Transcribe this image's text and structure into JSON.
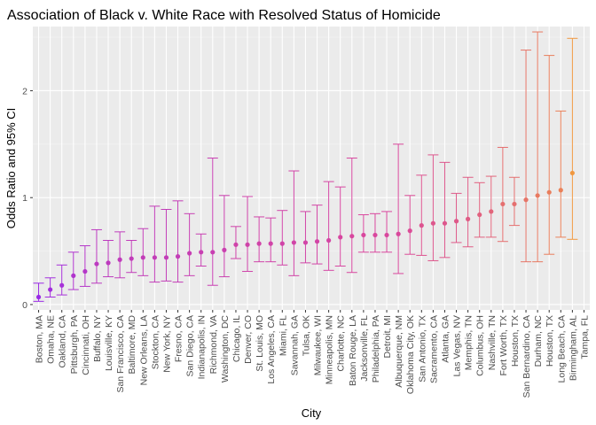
{
  "chart_data": {
    "type": "errorbar",
    "title": "Association of Black v. White Race with Resolved Status of Homicide",
    "xlabel": "City",
    "ylabel": "Odds Ratio and 95% CI",
    "ylim": [
      -0.05,
      2.6
    ],
    "yticks": [
      0,
      1,
      2
    ],
    "grid": true,
    "legend": "none",
    "color_low": "#9a2ae6",
    "color_mid": "#d9479e",
    "color_high": "#f0973f",
    "points": [
      {
        "city": "Boston, MA",
        "or": 0.07,
        "lo": 0.03,
        "hi": 0.2
      },
      {
        "city": "Omaha, NE",
        "or": 0.14,
        "lo": 0.07,
        "hi": 0.25
      },
      {
        "city": "Oakland, CA",
        "or": 0.18,
        "lo": 0.09,
        "hi": 0.37
      },
      {
        "city": "Pittsburgh, PA",
        "or": 0.27,
        "lo": 0.14,
        "hi": 0.49
      },
      {
        "city": "Cincinnati, OH",
        "or": 0.31,
        "lo": 0.17,
        "hi": 0.55
      },
      {
        "city": "Buffalo, NY",
        "or": 0.38,
        "lo": 0.2,
        "hi": 0.7
      },
      {
        "city": "Louisville, KY",
        "or": 0.39,
        "lo": 0.26,
        "hi": 0.6
      },
      {
        "city": "San Francisco, CA",
        "or": 0.42,
        "lo": 0.25,
        "hi": 0.68
      },
      {
        "city": "Baltimore, MD",
        "or": 0.43,
        "lo": 0.3,
        "hi": 0.6
      },
      {
        "city": "New Orleans, LA",
        "or": 0.44,
        "lo": 0.27,
        "hi": 0.71
      },
      {
        "city": "Stockton, CA",
        "or": 0.44,
        "lo": 0.21,
        "hi": 0.92
      },
      {
        "city": "New York, NY",
        "or": 0.44,
        "lo": 0.22,
        "hi": 0.89
      },
      {
        "city": "Fresno, CA",
        "or": 0.45,
        "lo": 0.21,
        "hi": 0.97
      },
      {
        "city": "San Diego, CA",
        "or": 0.48,
        "lo": 0.27,
        "hi": 0.85
      },
      {
        "city": "Indianapolis, IN",
        "or": 0.49,
        "lo": 0.36,
        "hi": 0.66
      },
      {
        "city": "Richmond, VA",
        "or": 0.49,
        "lo": 0.18,
        "hi": 1.37
      },
      {
        "city": "Washington, DC",
        "or": 0.51,
        "lo": 0.26,
        "hi": 1.02
      },
      {
        "city": "Chicago, IL",
        "or": 0.56,
        "lo": 0.43,
        "hi": 0.73
      },
      {
        "city": "Denver, CO",
        "or": 0.56,
        "lo": 0.31,
        "hi": 1.01
      },
      {
        "city": "St. Louis, MO",
        "or": 0.57,
        "lo": 0.4,
        "hi": 0.82
      },
      {
        "city": "Los Angeles, CA",
        "or": 0.57,
        "lo": 0.4,
        "hi": 0.81
      },
      {
        "city": "Miami, FL",
        "or": 0.57,
        "lo": 0.37,
        "hi": 0.88
      },
      {
        "city": "Savannah, GA",
        "or": 0.58,
        "lo": 0.27,
        "hi": 1.25
      },
      {
        "city": "Tulsa, OK",
        "or": 0.58,
        "lo": 0.39,
        "hi": 0.87
      },
      {
        "city": "Milwaukee, WI",
        "or": 0.59,
        "lo": 0.38,
        "hi": 0.93
      },
      {
        "city": "Minneapolis, MN",
        "or": 0.6,
        "lo": 0.32,
        "hi": 1.15
      },
      {
        "city": "Charlotte, NC",
        "or": 0.63,
        "lo": 0.36,
        "hi": 1.1
      },
      {
        "city": "Baton Rouge, LA",
        "or": 0.64,
        "lo": 0.3,
        "hi": 1.37
      },
      {
        "city": "Jacksonville, FL",
        "or": 0.65,
        "lo": 0.49,
        "hi": 0.84
      },
      {
        "city": "Philadelphia, PA",
        "or": 0.65,
        "lo": 0.49,
        "hi": 0.85
      },
      {
        "city": "Detroit, MI",
        "or": 0.65,
        "lo": 0.49,
        "hi": 0.87
      },
      {
        "city": "Albuquerque, NM",
        "or": 0.66,
        "lo": 0.29,
        "hi": 1.5
      },
      {
        "city": "Oklahoma City, OK",
        "or": 0.69,
        "lo": 0.47,
        "hi": 1.02
      },
      {
        "city": "San Antonio, TX",
        "or": 0.74,
        "lo": 0.46,
        "hi": 1.21
      },
      {
        "city": "Sacramento, CA",
        "or": 0.76,
        "lo": 0.41,
        "hi": 1.4
      },
      {
        "city": "Atlanta, GA",
        "or": 0.76,
        "lo": 0.44,
        "hi": 1.33
      },
      {
        "city": "Las Vegas, NV",
        "or": 0.78,
        "lo": 0.58,
        "hi": 1.04
      },
      {
        "city": "Memphis, TN",
        "or": 0.8,
        "lo": 0.54,
        "hi": 1.19
      },
      {
        "city": "Columbus, OH",
        "or": 0.84,
        "lo": 0.63,
        "hi": 1.14
      },
      {
        "city": "Nashville, TN",
        "or": 0.87,
        "lo": 0.63,
        "hi": 1.2
      },
      {
        "city": "Fort Worth, TX",
        "or": 0.94,
        "lo": 0.59,
        "hi": 1.47
      },
      {
        "city": "Houston, TX",
        "or": 0.94,
        "lo": 0.74,
        "hi": 1.19
      },
      {
        "city": "San Bernardino, CA",
        "or": 0.98,
        "lo": 0.4,
        "hi": 2.38
      },
      {
        "city": "Durham, NC",
        "or": 1.02,
        "lo": 0.4,
        "hi": 2.55
      },
      {
        "city": "Houston, TX",
        "or": 1.05,
        "lo": 0.47,
        "hi": 2.33
      },
      {
        "city": "Long Beach, CA",
        "or": 1.07,
        "lo": 0.63,
        "hi": 1.81
      },
      {
        "city": "Birmingham, AL",
        "or": 1.23,
        "lo": 0.61,
        "hi": 2.49
      }
    ],
    "extra_label": "Tampa, FL"
  }
}
